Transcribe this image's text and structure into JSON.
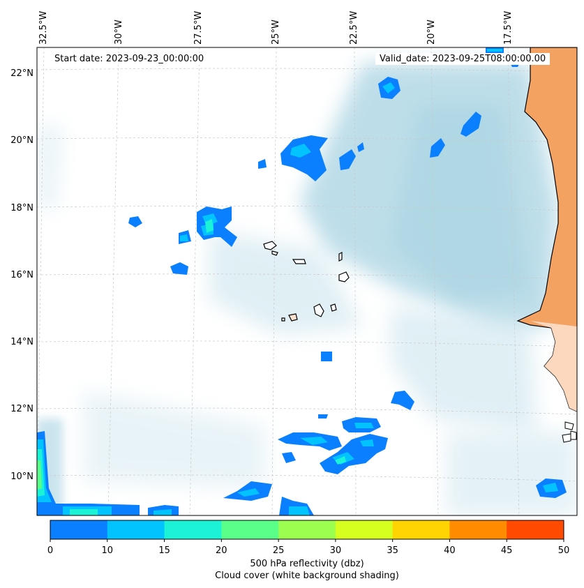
{
  "map": {
    "start_date": "Start date: 2023-09-23_00:00:00",
    "valid_date": "Valid_date: 2023-09-25T08:00:00.00",
    "lon_labels": [
      "32.5°W",
      "30°W",
      "27.5°W",
      "25°W",
      "22.5°W",
      "20°W",
      "17.5°W"
    ],
    "lat_labels": [
      "22°N",
      "20°N",
      "18°N",
      "16°N",
      "14°N",
      "12°N",
      "10°N"
    ],
    "land_color": "#f4a261",
    "cloud_color": "#a8d3e2",
    "coastline_color": "#000000"
  },
  "colorbar": {
    "ticks": [
      "0",
      "10",
      "15",
      "20",
      "25",
      "30",
      "35",
      "40",
      "45",
      "50"
    ],
    "colors": [
      "#0a7fff",
      "#03c3ff",
      "#1cf2d5",
      "#5aff8a",
      "#9cff4f",
      "#d6ff1f",
      "#ffd400",
      "#ff8c00",
      "#ff4a00"
    ],
    "label": "500 hPa reflectivity (dbz)",
    "sublabel": "Cloud cover (white background shading)"
  }
}
